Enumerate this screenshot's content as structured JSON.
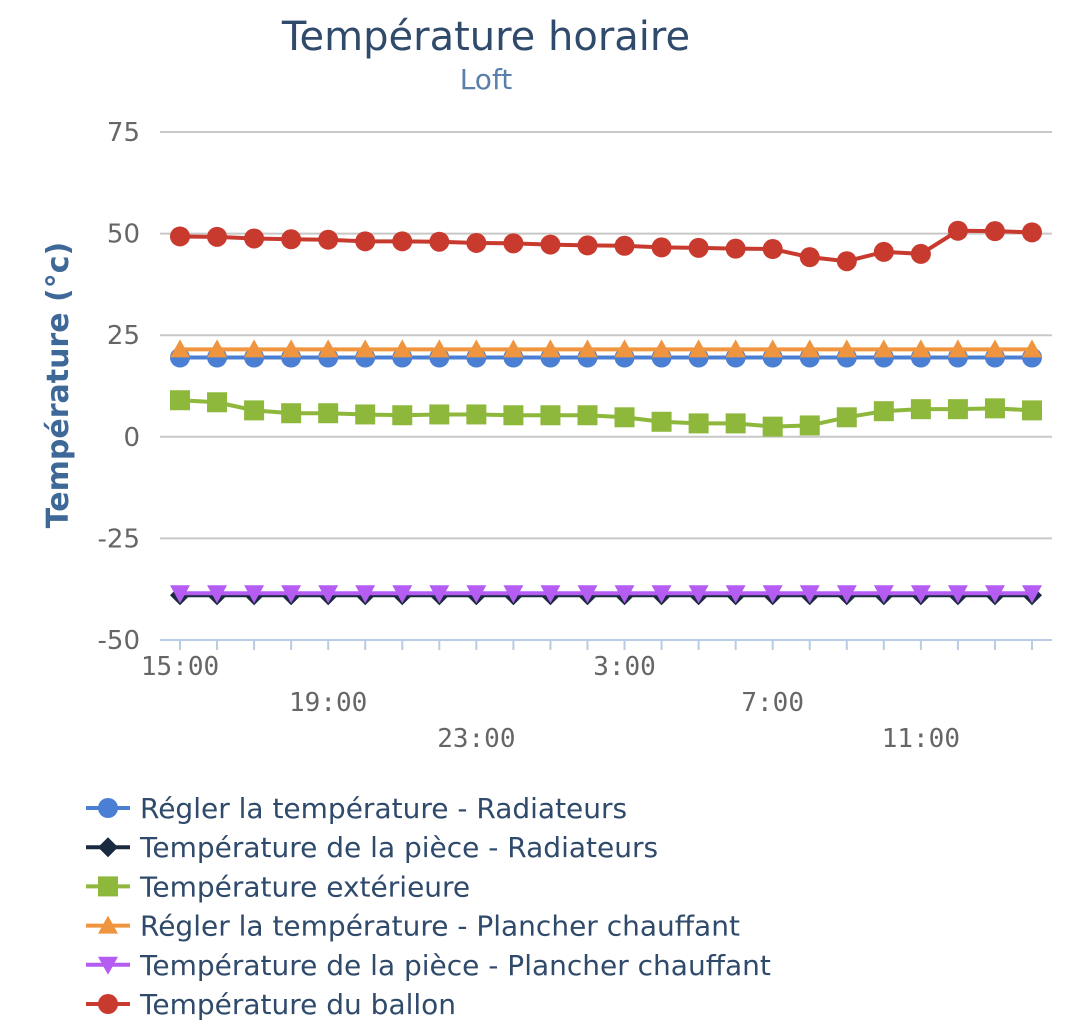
{
  "chart_data": {
    "type": "line",
    "title": "Température horaire",
    "subtitle": "Loft",
    "ylabel": "Température (°c)",
    "xlabel": "",
    "ylim": [
      -50,
      75
    ],
    "yticks": [
      75,
      50,
      25,
      0,
      -25,
      -50
    ],
    "x": [
      "15:00",
      "16:00",
      "17:00",
      "18:00",
      "19:00",
      "20:00",
      "21:00",
      "22:00",
      "23:00",
      "0:00",
      "1:00",
      "2:00",
      "3:00",
      "4:00",
      "5:00",
      "6:00",
      "7:00",
      "8:00",
      "9:00",
      "10:00",
      "11:00",
      "12:00",
      "13:00",
      "14:00"
    ],
    "x_tick_labels": [
      {
        "label": "15:00",
        "index": 0,
        "row": 0
      },
      {
        "label": "19:00",
        "index": 4,
        "row": 1
      },
      {
        "label": "23:00",
        "index": 8,
        "row": 2
      },
      {
        "label": "3:00",
        "index": 12,
        "row": 0
      },
      {
        "label": "7:00",
        "index": 16,
        "row": 1
      },
      {
        "label": "11:00",
        "index": 20,
        "row": 2
      }
    ],
    "grid": true,
    "legend_position": "bottom",
    "series": [
      {
        "name": "Régler la température - Radiateurs",
        "color": "#4a7fd4",
        "marker": "circle",
        "values": [
          19.5,
          19.5,
          19.5,
          19.5,
          19.5,
          19.5,
          19.5,
          19.5,
          19.5,
          19.5,
          19.5,
          19.5,
          19.5,
          19.5,
          19.5,
          19.5,
          19.5,
          19.5,
          19.5,
          19.5,
          19.5,
          19.5,
          19.5,
          19.5
        ]
      },
      {
        "name": "Température de la pièce - Radiateurs",
        "color": "#1a2a40",
        "marker": "diamond",
        "values": [
          -39,
          -39,
          -39,
          -39,
          -39,
          -39,
          -39,
          -39,
          -39,
          -39,
          -39,
          -39,
          -39,
          -39,
          -39,
          -39,
          -39,
          -39,
          -39,
          -39,
          -39,
          -39,
          -39,
          -39
        ]
      },
      {
        "name": "Température extérieure",
        "color": "#8db83c",
        "marker": "square",
        "values": [
          9,
          8.5,
          6.5,
          5.8,
          5.8,
          5.5,
          5.3,
          5.5,
          5.5,
          5.3,
          5.3,
          5.3,
          4.8,
          3.7,
          3.3,
          3.3,
          2.5,
          2.8,
          4.8,
          6.3,
          6.8,
          6.8,
          7,
          6.5
        ]
      },
      {
        "name": "Régler la température - Plancher chauffant",
        "color": "#f0953f",
        "marker": "triangle-up",
        "values": [
          21.5,
          21.5,
          21.5,
          21.5,
          21.5,
          21.5,
          21.5,
          21.5,
          21.5,
          21.5,
          21.5,
          21.5,
          21.5,
          21.5,
          21.5,
          21.5,
          21.5,
          21.5,
          21.5,
          21.5,
          21.5,
          21.5,
          21.5,
          21.5
        ]
      },
      {
        "name": "Température de la pièce - Plancher chauffant",
        "color": "#b55df2",
        "marker": "triangle-down",
        "values": [
          -38.5,
          -38.5,
          -38.5,
          -38.5,
          -38.5,
          -38.5,
          -38.5,
          -38.5,
          -38.5,
          -38.5,
          -38.5,
          -38.5,
          -38.5,
          -38.5,
          -38.5,
          -38.5,
          -38.5,
          -38.5,
          -38.5,
          -38.5,
          -38.5,
          -38.5,
          -38.5,
          -38.5
        ]
      },
      {
        "name": "Température du ballon",
        "color": "#c93a2e",
        "marker": "circle",
        "values": [
          49.3,
          49.2,
          48.8,
          48.6,
          48.5,
          48.1,
          48.1,
          48,
          47.7,
          47.6,
          47.3,
          47.1,
          47,
          46.6,
          46.5,
          46.3,
          46.2,
          44.2,
          43.2,
          45.5,
          45,
          50.7,
          50.6,
          50.3
        ]
      }
    ]
  }
}
